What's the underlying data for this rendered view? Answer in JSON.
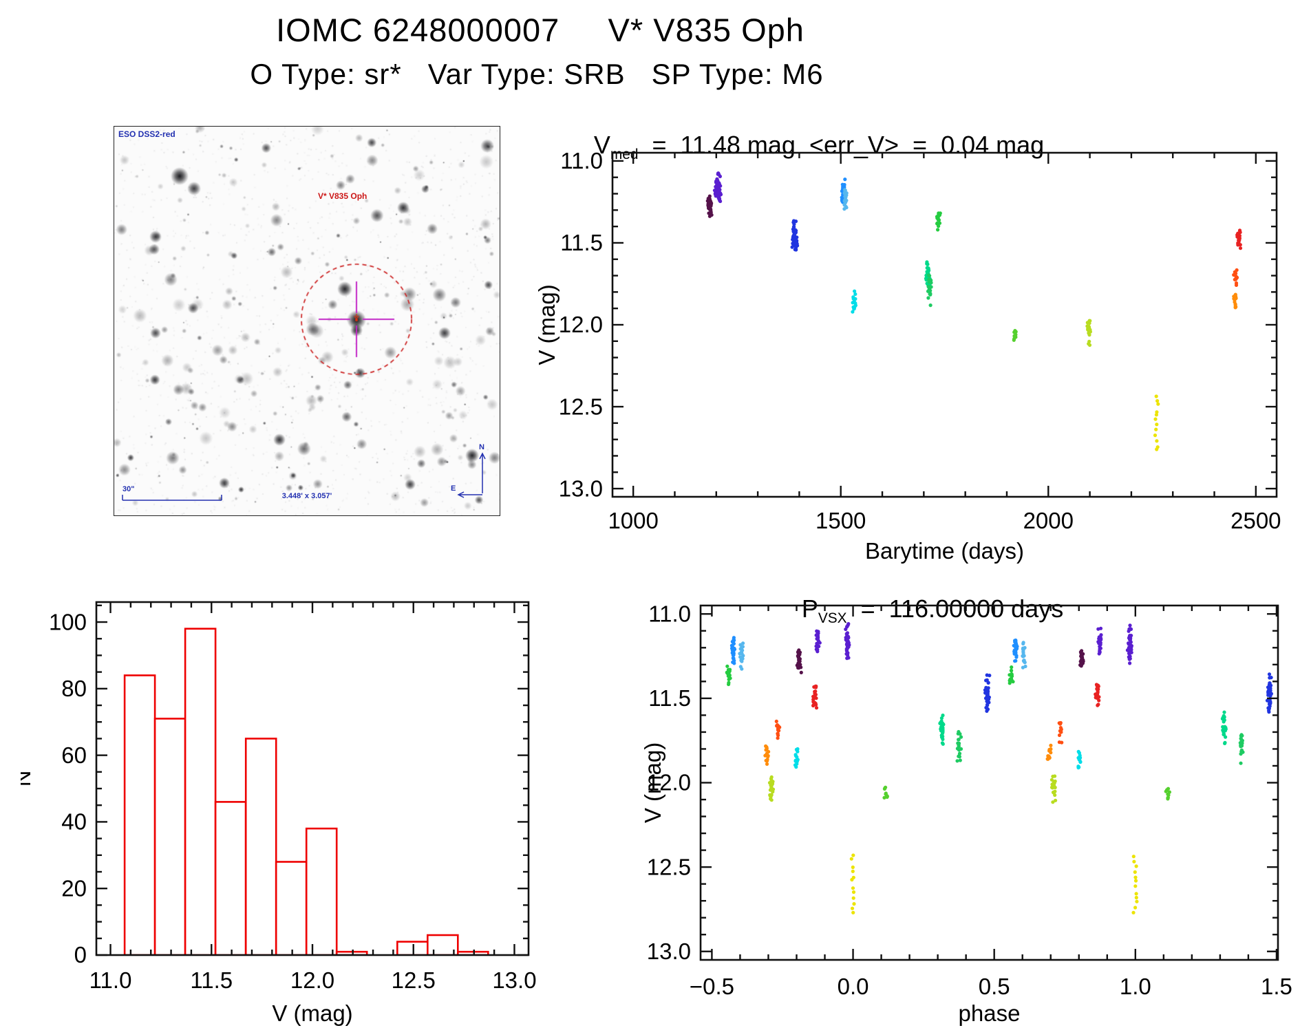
{
  "header": {
    "title": "IOMC 6248000007     V* V835 Oph",
    "subtitle": "O Type: sr*   Var Type: SRB   SP Type: M6"
  },
  "starfield": {
    "survey": "ESO DSS2-red",
    "target": "V* V835 Oph",
    "scalebar": "30\"",
    "fov": "3.448' x 3.057'",
    "north": "N",
    "east": "E",
    "annotation_blue": "#2230b0",
    "target_red": "#cc1818",
    "circle_color": "#cc2222",
    "crosshair_color": "#c328c8"
  },
  "chart_data": [
    {
      "id": "lightcurve",
      "type": "scatter",
      "title_base": "V",
      "title_sub": "med",
      "title_rest": "  =  11.48 mag  <err_V>  =  0.04 mag",
      "xlabel": "Barytime (days)",
      "ylabel": "V (mag)",
      "xlim": [
        950,
        2550
      ],
      "ylim": [
        10.95,
        13.05
      ],
      "y_down": true,
      "grid": false,
      "xticks": [
        1000,
        1500,
        2000,
        2500
      ],
      "xtick_labels": [
        "1000",
        "1500",
        "2000",
        "2500"
      ],
      "xminor": 100,
      "yticks": [
        11.0,
        11.5,
        12.0,
        12.5,
        13.0
      ],
      "ytick_labels": [
        "11.0",
        "11.5",
        "12.0",
        "12.5",
        "13.0"
      ],
      "yminor": 0.1,
      "clusters": [
        {
          "x": 1183,
          "vmin": 11.19,
          "vmax": 11.33,
          "n": 26,
          "color": "#55124a"
        },
        {
          "x": 1187,
          "vmin": 11.23,
          "vmax": 11.36,
          "n": 16,
          "color": "#55124a"
        },
        {
          "x": 1201,
          "vmin": 11.08,
          "vmax": 11.24,
          "n": 24,
          "color": "#5a1fd0"
        },
        {
          "x": 1206,
          "vmin": 11.04,
          "vmax": 11.29,
          "n": 38,
          "color": "#5a1fd0"
        },
        {
          "x": 1388,
          "vmin": 11.34,
          "vmax": 11.58,
          "n": 44,
          "color": "#2135e0"
        },
        {
          "x": 1392,
          "vmin": 11.38,
          "vmax": 11.6,
          "n": 18,
          "color": "#2135e0"
        },
        {
          "x": 1506,
          "vmin": 11.1,
          "vmax": 11.3,
          "n": 34,
          "color": "#1f8fff"
        },
        {
          "x": 1511,
          "vmin": 11.15,
          "vmax": 11.34,
          "n": 20,
          "color": "#56b7ee"
        },
        {
          "x": 1531,
          "vmin": 11.78,
          "vmax": 11.94,
          "n": 15,
          "color": "#00dde8"
        },
        {
          "x": 1710,
          "vmin": 11.58,
          "vmax": 11.79,
          "n": 28,
          "color": "#00d98a"
        },
        {
          "x": 1714,
          "vmin": 11.67,
          "vmax": 11.9,
          "n": 20,
          "color": "#1ecb62"
        },
        {
          "x": 1736,
          "vmin": 11.3,
          "vmax": 11.43,
          "n": 17,
          "color": "#25cc40"
        },
        {
          "x": 1919,
          "vmin": 12.02,
          "vmax": 12.1,
          "n": 10,
          "color": "#55d02e"
        },
        {
          "x": 2098,
          "vmin": 11.96,
          "vmax": 12.13,
          "n": 24,
          "color": "#b8dc20"
        },
        {
          "x": 2261,
          "vmin": 12.43,
          "vmax": 12.77,
          "n": 12,
          "color": "#ece400",
          "sparse": true
        },
        {
          "x": 2450,
          "vmin": 11.76,
          "vmax": 11.92,
          "n": 16,
          "color": "#ff8c0a"
        },
        {
          "x": 2452,
          "vmin": 11.62,
          "vmax": 11.77,
          "n": 13,
          "color": "#ff4f12"
        },
        {
          "x": 2459,
          "vmin": 11.39,
          "vmax": 11.57,
          "n": 24,
          "color": "#e82222"
        }
      ]
    },
    {
      "id": "histogram",
      "type": "histogram",
      "xlabel": "V (mag)",
      "ylabel": "N",
      "bin_start": 11.07,
      "bin_width": 0.15,
      "counts": [
        84,
        71,
        98,
        46,
        65,
        28,
        38,
        1,
        0,
        4,
        6,
        1
      ],
      "xlim": [
        10.93,
        13.07
      ],
      "ylim": [
        0,
        106
      ],
      "xticks": [
        11.0,
        11.5,
        12.0,
        12.5,
        13.0
      ],
      "xtick_labels": [
        "11.0",
        "11.5",
        "12.0",
        "12.5",
        "13.0"
      ],
      "xminor": 0.1,
      "yticks": [
        0,
        20,
        40,
        60,
        80,
        100
      ],
      "ytick_labels": [
        "0",
        "20",
        "40",
        "60",
        "80",
        "100"
      ],
      "yminor": 5,
      "bar_color": "#ee0000"
    },
    {
      "id": "phase",
      "type": "scatter",
      "title_base": "P",
      "title_sub": "VSX",
      "title_rest": "  =  116.00000 days",
      "xlabel": "phase",
      "ylabel": "V (mag)",
      "xlim": [
        -0.54,
        1.505
      ],
      "ylim": [
        10.95,
        13.05
      ],
      "y_down": true,
      "grid": false,
      "duplicate_offset": 1.0,
      "xticks": [
        -0.5,
        0.0,
        0.5,
        1.0,
        1.5
      ],
      "xtick_labels": [
        "−0.5",
        "0.0",
        "0.5",
        "1.0",
        "1.5"
      ],
      "xminor": 0.1,
      "yticks": [
        11.0,
        11.5,
        12.0,
        12.5,
        13.0
      ],
      "ytick_labels": [
        "11.0",
        "11.5",
        "12.0",
        "12.5",
        "13.0"
      ],
      "yminor": 0.1,
      "clusters": [
        {
          "x": -0.44,
          "vmin": 11.3,
          "vmax": 11.43,
          "n": 17,
          "color": "#25cc40"
        },
        {
          "x": -0.425,
          "vmin": 11.1,
          "vmax": 11.3,
          "n": 30,
          "color": "#1f8fff"
        },
        {
          "x": -0.395,
          "vmin": 11.16,
          "vmax": 11.35,
          "n": 20,
          "color": "#56b7ee"
        },
        {
          "x": -0.305,
          "vmin": 11.75,
          "vmax": 11.91,
          "n": 16,
          "color": "#ff8c0a"
        },
        {
          "x": -0.29,
          "vmin": 11.95,
          "vmax": 12.13,
          "n": 24,
          "color": "#b8dc20"
        },
        {
          "x": -0.265,
          "vmin": 11.61,
          "vmax": 11.77,
          "n": 13,
          "color": "#ff4f12"
        },
        {
          "x": -0.2,
          "vmin": 11.78,
          "vmax": 11.94,
          "n": 15,
          "color": "#00dde8"
        },
        {
          "x": -0.19,
          "vmin": 11.2,
          "vmax": 11.36,
          "n": 30,
          "color": "#55124a"
        },
        {
          "x": -0.135,
          "vmin": 11.38,
          "vmax": 11.56,
          "n": 24,
          "color": "#e82222"
        },
        {
          "x": -0.125,
          "vmin": 11.07,
          "vmax": 11.27,
          "n": 24,
          "color": "#5a1fd0"
        },
        {
          "x": -0.02,
          "vmin": 11.04,
          "vmax": 11.3,
          "n": 42,
          "color": "#5a1fd0"
        },
        {
          "x": 0.0,
          "vmin": 12.43,
          "vmax": 12.77,
          "n": 12,
          "color": "#ece400",
          "sparse": true
        },
        {
          "x": 0.115,
          "vmin": 12.02,
          "vmax": 12.1,
          "n": 10,
          "color": "#55d02e"
        },
        {
          "x": 0.315,
          "vmin": 11.58,
          "vmax": 11.79,
          "n": 28,
          "color": "#00d98a"
        },
        {
          "x": 0.375,
          "vmin": 11.67,
          "vmax": 11.9,
          "n": 20,
          "color": "#1ecb62"
        },
        {
          "x": 0.475,
          "vmin": 11.34,
          "vmax": 11.6,
          "n": 50,
          "color": "#2135e0"
        }
      ]
    }
  ]
}
